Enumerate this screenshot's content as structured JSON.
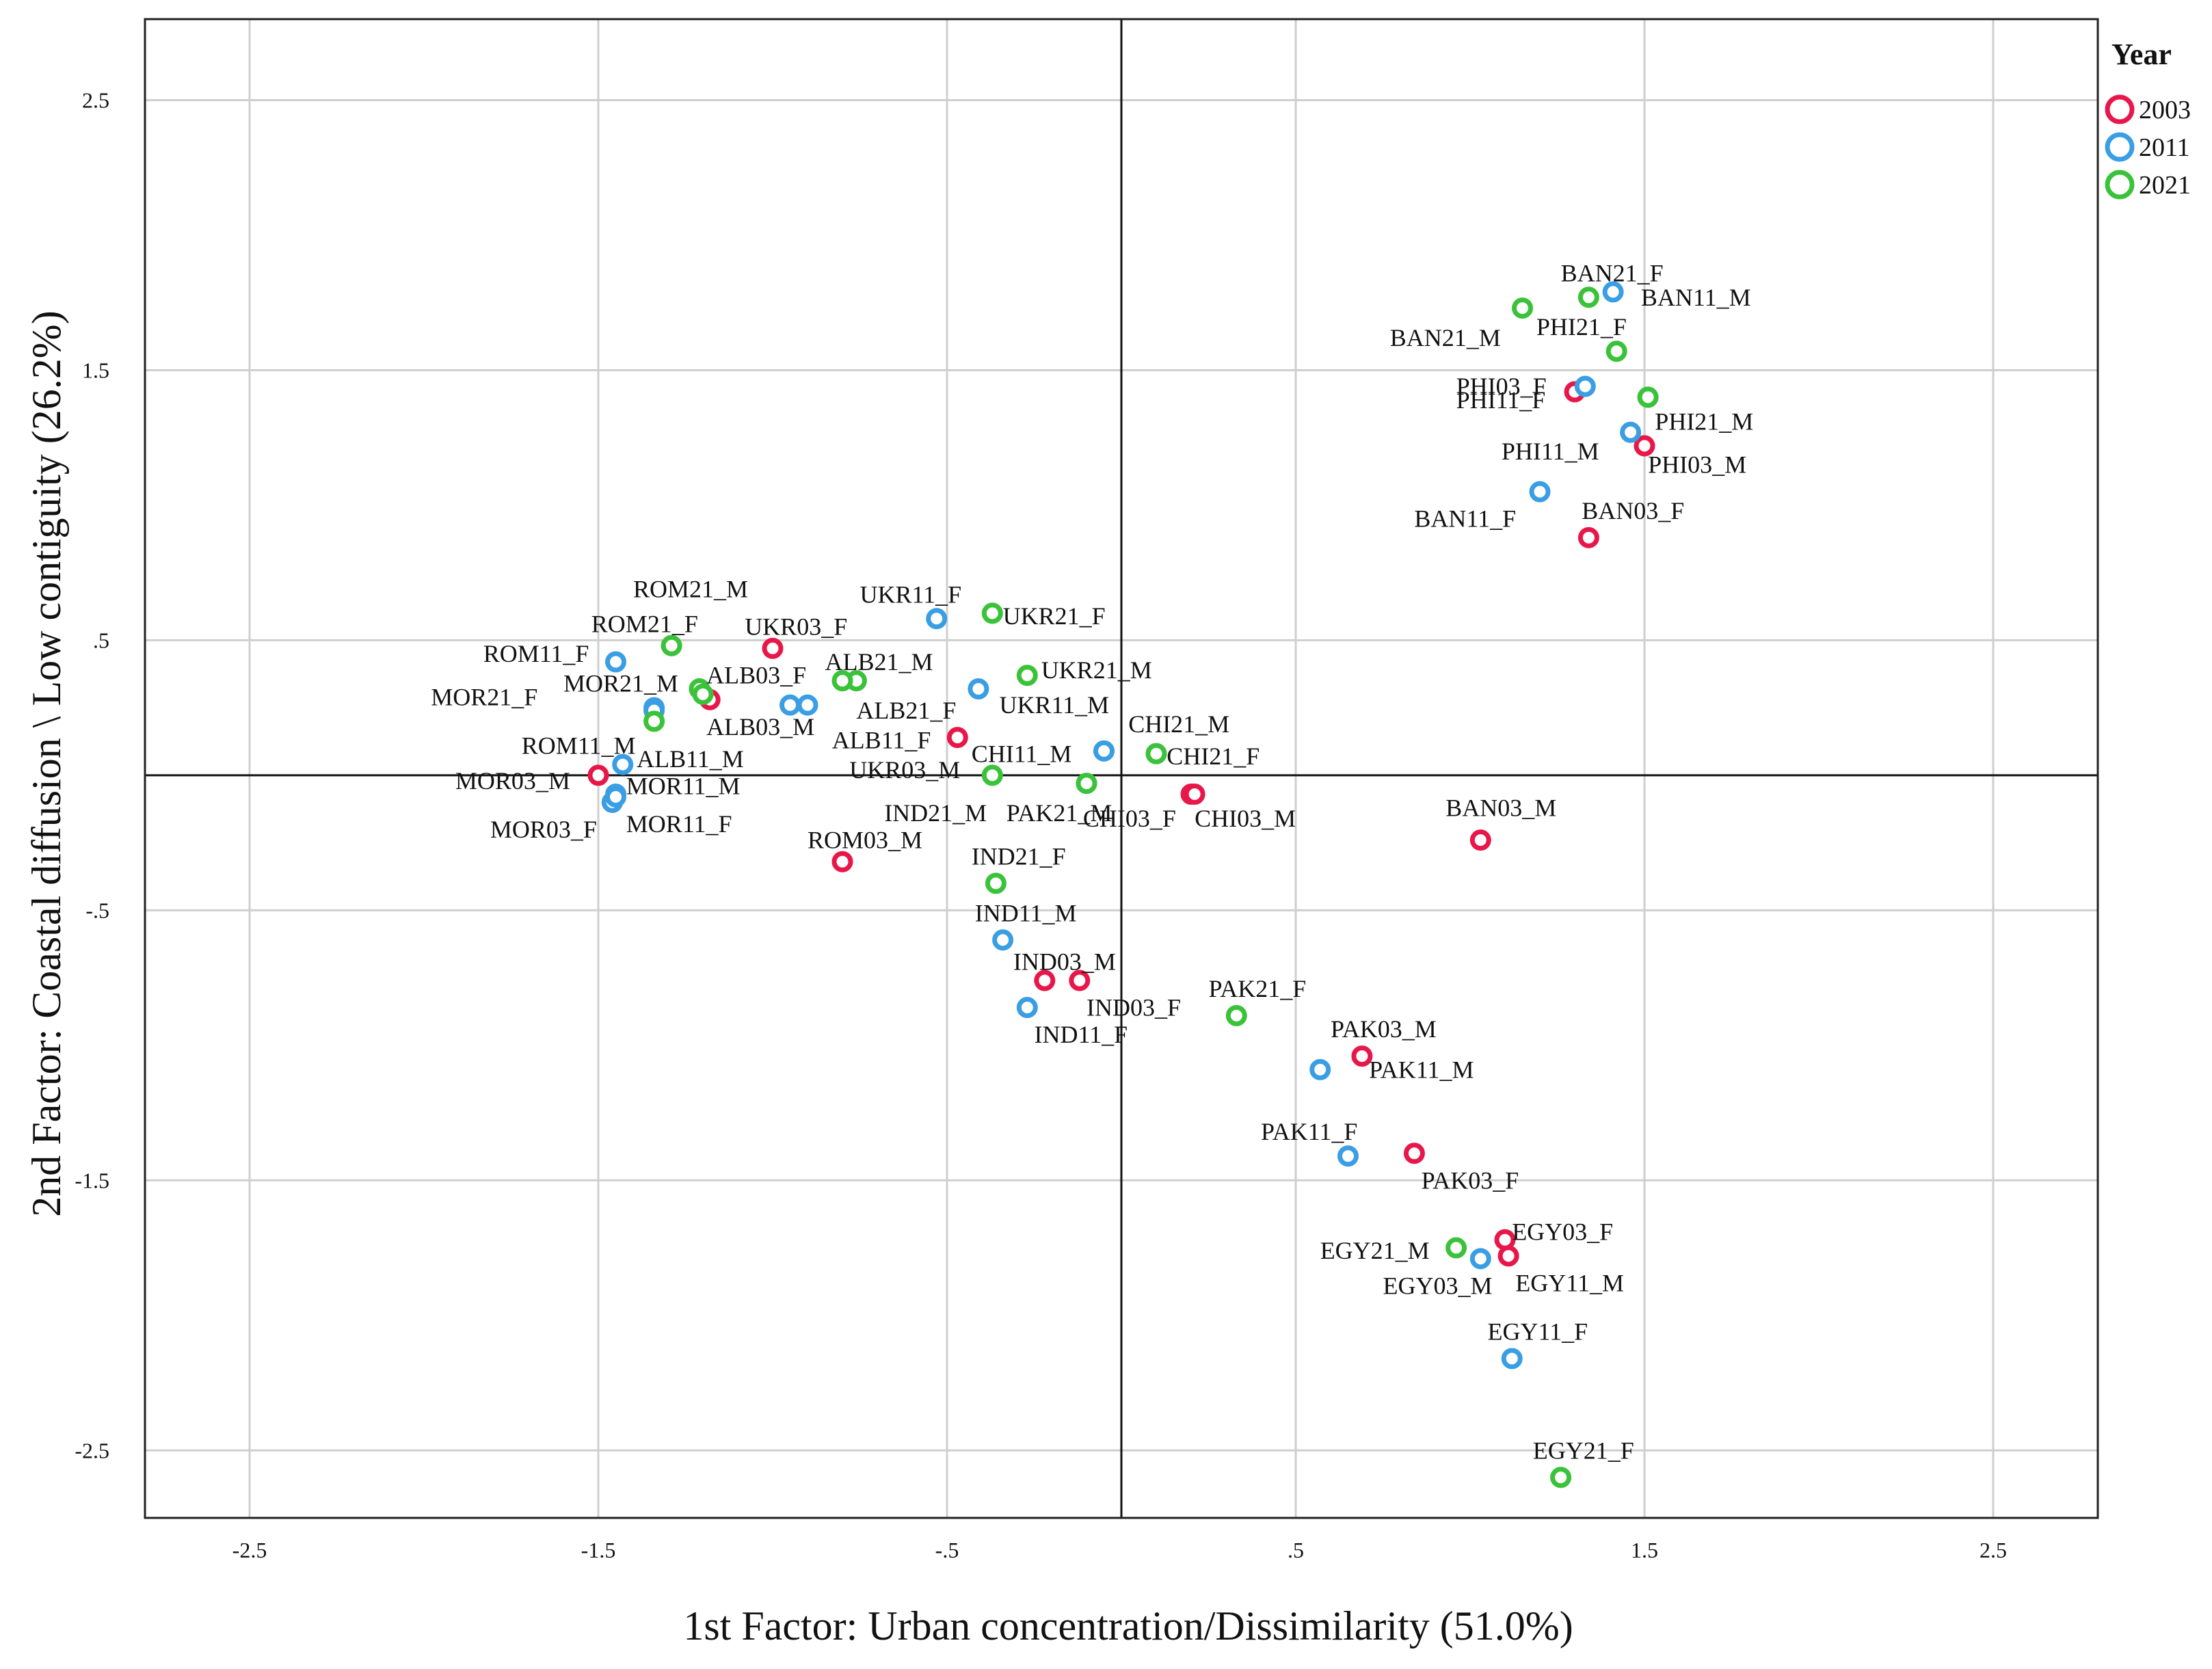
{
  "chart_data": {
    "type": "scatter",
    "xlabel": "1st Factor: Urban concentration/Dissimilarity  (51.0%)",
    "ylabel": "2nd Factor:  Coastal diffusion \\ Low  contiguity  (26.2%)",
    "xlim": [
      -2.8,
      2.8
    ],
    "ylim": [
      -2.75,
      2.8
    ],
    "x_ticks": [
      -2.5,
      -1.5,
      -0.5,
      0.5,
      1.5,
      2.5
    ],
    "x_tick_labels": [
      "-2.5",
      "-1.5",
      "-.5",
      ".5",
      "1.5",
      "2.5"
    ],
    "y_ticks": [
      2.5,
      1.5,
      0.5,
      -0.5,
      -1.5,
      -2.5
    ],
    "y_tick_labels": [
      "2.5",
      "1.5",
      ".5",
      "-.5",
      "-1.5",
      "-2.5"
    ],
    "grid": true,
    "reference_lines": {
      "x": 0,
      "y": 0
    },
    "legend": {
      "title": "Year",
      "position": "top-right",
      "entries": [
        {
          "label": "2003",
          "color": "#e8174a"
        },
        {
          "label": "2011",
          "color": "#3a9ee4"
        },
        {
          "label": "2021",
          "color": "#3bc23b"
        }
      ]
    },
    "series": [
      {
        "name": "2003",
        "color": "#e8174a",
        "points": [
          {
            "label": "BAN03_F",
            "x": 1.34,
            "y": 0.88,
            "lx": -0.02,
            "ly": 0.1
          },
          {
            "label": "BAN03_M",
            "x": 1.03,
            "y": -0.24,
            "lx": -0.1,
            "ly": 0.12
          },
          {
            "label": "PHI03_M",
            "x": 1.5,
            "y": 1.22,
            "lx": 0.01,
            "ly": -0.07
          },
          {
            "label": "PHI11_F",
            "x": 1.3,
            "y": 1.42,
            "lx": -0.34,
            "ly": -0.03
          },
          {
            "label": "UKR03_F",
            "x": -1.0,
            "y": 0.47,
            "lx": -0.08,
            "ly": 0.08
          },
          {
            "label": "ALB03_M",
            "x": -1.18,
            "y": 0.28,
            "lx": -0.01,
            "ly": -0.1
          },
          {
            "label": "ALB11_F",
            "x": -0.47,
            "y": 0.14,
            "lx": -0.36,
            "ly": -0.01
          },
          {
            "label": "MOR03_M",
            "x": -1.5,
            "y": 0.0,
            "lx": -0.41,
            "ly": -0.02
          },
          {
            "label": "MOR03_F",
            "x": -1.46,
            "y": -0.1,
            "lx": -0.35,
            "ly": -0.1
          },
          {
            "label": "ROM03_M",
            "x": -0.8,
            "y": -0.32,
            "lx": -0.1,
            "ly": 0.08
          },
          {
            "label": "IND03_M",
            "x": -0.22,
            "y": -0.76,
            "lx": -0.09,
            "ly": 0.07
          },
          {
            "label": "IND03_F",
            "x": -0.12,
            "y": -0.76,
            "lx": 0.02,
            "ly": -0.1
          },
          {
            "label": "CHI03_M",
            "x": 0.2,
            "y": -0.07,
            "lx": 0.01,
            "ly": -0.09
          },
          {
            "label": "CHI03_F",
            "x": 0.21,
            "y": -0.07,
            "lx": -0.32,
            "ly": -0.09
          },
          {
            "label": "PAK03_M",
            "x": 0.69,
            "y": -1.04,
            "lx": -0.09,
            "ly": 0.1
          },
          {
            "label": "PAK03_F",
            "x": 0.84,
            "y": -1.4,
            "lx": 0.02,
            "ly": -0.1
          },
          {
            "label": "EGY03_F",
            "x": 1.1,
            "y": -1.72,
            "lx": 0.02,
            "ly": 0.03
          },
          {
            "label": "EGY11_M",
            "x": 1.11,
            "y": -1.78,
            "lx": 0.02,
            "ly": -0.1
          }
        ]
      },
      {
        "name": "2011",
        "color": "#3a9ee4",
        "points": [
          {
            "label": "BAN11_M",
            "x": 1.41,
            "y": 1.79,
            "lx": 0.08,
            "ly": -0.02
          },
          {
            "label": "PHI11_M",
            "x": 1.46,
            "y": 1.27,
            "lx": -0.37,
            "ly": -0.07
          },
          {
            "label": "BAN11_F",
            "x": 1.2,
            "y": 1.05,
            "lx": -0.36,
            "ly": -0.1
          },
          {
            "label": "UKR11_F",
            "x": -0.53,
            "y": 0.58,
            "lx": -0.22,
            "ly": 0.09
          },
          {
            "label": "UKR11_M",
            "x": -0.41,
            "y": 0.32,
            "lx": 0.06,
            "ly": -0.06
          },
          {
            "label": "ALB11_M",
            "x": -1.43,
            "y": 0.04,
            "lx": 0.04,
            "ly": 0.02
          },
          {
            "label": "ROM11_F",
            "x": -1.45,
            "y": 0.42,
            "lx": -0.38,
            "ly": 0.03
          },
          {
            "label": "ROM11_M",
            "x": -1.34,
            "y": 0.25,
            "lx": -0.38,
            "ly": -0.14
          },
          {
            "label": "MOR11_M",
            "x": -1.45,
            "y": -0.07,
            "lx": 0.03,
            "ly": 0.03
          },
          {
            "label": "MOR11_F",
            "x": -1.46,
            "y": -0.1,
            "lx": 0.04,
            "ly": -0.08
          },
          {
            "label": "ALB21_F",
            "x": -0.9,
            "y": 0.26,
            "lx": 0.14,
            "ly": -0.02
          },
          {
            "label": "CHI11_M",
            "x": -0.05,
            "y": 0.09,
            "lx": -0.38,
            "ly": -0.01
          },
          {
            "label": "IND11_M",
            "x": -0.34,
            "y": -0.61,
            "lx": -0.08,
            "ly": 0.1
          },
          {
            "label": "IND11_F",
            "x": -0.27,
            "y": -0.86,
            "lx": 0.02,
            "ly": -0.1
          },
          {
            "label": "PAK11_M",
            "x": 0.57,
            "y": -1.09,
            "lx": 0.14,
            "ly": 0.0
          },
          {
            "label": "PAK11_F",
            "x": 0.65,
            "y": -1.41,
            "lx": -0.25,
            "ly": 0.09
          },
          {
            "label": "EGY03_M",
            "x": 1.03,
            "y": -1.79,
            "lx": -0.28,
            "ly": -0.1
          },
          {
            "label": "EGY11_F",
            "x": 1.12,
            "y": -2.16,
            "lx": -0.07,
            "ly": 0.1
          },
          {
            "label": "",
            "x": 1.33,
            "y": 1.44,
            "lx": 0,
            "ly": 0
          },
          {
            "label": "",
            "x": -1.34,
            "y": 0.24,
            "lx": 0,
            "ly": 0
          },
          {
            "label": "",
            "x": -0.95,
            "y": 0.26,
            "lx": 0,
            "ly": 0
          },
          {
            "label": "",
            "x": -0.05,
            "y": 0.09,
            "lx": 0,
            "ly": 0
          },
          {
            "label": "",
            "x": -1.45,
            "y": -0.08,
            "lx": 0,
            "ly": 0
          }
        ]
      },
      {
        "name": "2021",
        "color": "#3bc23b",
        "points": [
          {
            "label": "BAN21_F",
            "x": 1.34,
            "y": 1.77,
            "lx": -0.08,
            "ly": 0.09
          },
          {
            "label": "BAN21_M",
            "x": 1.15,
            "y": 1.73,
            "lx": -0.38,
            "ly": -0.11
          },
          {
            "label": "PHI21_F",
            "x": 1.42,
            "y": 1.57,
            "lx": -0.23,
            "ly": 0.09
          },
          {
            "label": "PHI03_F",
            "x": 1.51,
            "y": 1.4,
            "lx": -0.55,
            "ly": 0.04
          },
          {
            "label": "PHI21_M",
            "x": 1.51,
            "y": 1.4,
            "lx": 0.02,
            "ly": -0.09
          },
          {
            "label": "ROM21_M",
            "x": -1.29,
            "y": 0.48,
            "lx": -0.11,
            "ly": 0.21
          },
          {
            "label": "ROM21_F",
            "x": -1.29,
            "y": 0.48,
            "lx": -0.23,
            "ly": 0.08
          },
          {
            "label": "UKR21_F",
            "x": -0.37,
            "y": 0.6,
            "lx": 0.03,
            "ly": -0.01
          },
          {
            "label": "UKR21_M",
            "x": -0.27,
            "y": 0.37,
            "lx": 0.04,
            "ly": 0.02
          },
          {
            "label": "ALB21_M",
            "x": -0.76,
            "y": 0.35,
            "lx": -0.09,
            "ly": 0.07
          },
          {
            "label": "ALB03_F",
            "x": -0.8,
            "y": 0.35,
            "lx": -0.39,
            "ly": 0.02
          },
          {
            "label": "MOR21_F",
            "x": -1.21,
            "y": 0.32,
            "lx": -0.77,
            "ly": -0.03
          },
          {
            "label": "MOR21_M",
            "x": -1.2,
            "y": 0.3,
            "lx": -0.4,
            "ly": 0.04
          },
          {
            "label": "UKR03_M",
            "x": -0.37,
            "y": 0.0,
            "lx": -0.41,
            "ly": 0.02
          },
          {
            "label": "CHI21_M",
            "x": 0.1,
            "y": 0.08,
            "lx": -0.08,
            "ly": 0.11
          },
          {
            "label": "CHI21_F",
            "x": 0.1,
            "y": 0.08,
            "lx": 0.03,
            "ly": -0.01
          },
          {
            "label": "IND21_M",
            "x": -0.1,
            "y": -0.03,
            "lx": -0.58,
            "ly": -0.11
          },
          {
            "label": "PAK21_M",
            "x": -0.1,
            "y": -0.03,
            "lx": -0.23,
            "ly": -0.11
          },
          {
            "label": "IND21_F",
            "x": -0.36,
            "y": -0.4,
            "lx": -0.07,
            "ly": 0.1
          },
          {
            "label": "PAK21_F",
            "x": 0.33,
            "y": -0.89,
            "lx": -0.08,
            "ly": 0.1
          },
          {
            "label": "EGY21_M",
            "x": 0.96,
            "y": -1.75,
            "lx": -0.39,
            "ly": -0.01
          },
          {
            "label": "EGY21_F",
            "x": 1.26,
            "y": -2.6,
            "lx": -0.08,
            "ly": 0.1
          },
          {
            "label": "",
            "x": -1.34,
            "y": 0.2,
            "lx": 0,
            "ly": 0
          }
        ]
      }
    ]
  }
}
